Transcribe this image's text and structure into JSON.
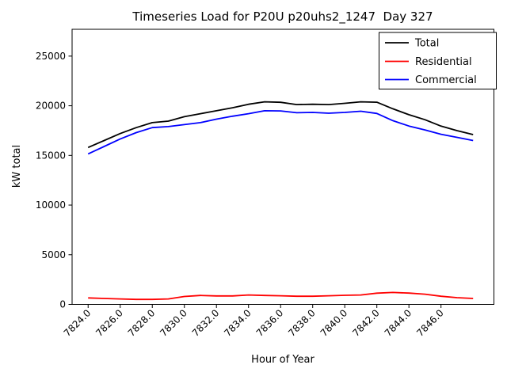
{
  "chart_data": {
    "type": "line",
    "title": "Timeseries Load for P20U p20uhs2_1247  Day 327",
    "xlabel": "Hour of Year",
    "ylabel": "kW total",
    "x": [
      7824.0,
      7825.0,
      7826.0,
      7827.0,
      7828.0,
      7829.0,
      7830.0,
      7831.0,
      7832.0,
      7833.0,
      7834.0,
      7835.0,
      7836.0,
      7837.0,
      7838.0,
      7839.0,
      7840.0,
      7841.0,
      7842.0,
      7843.0,
      7844.0,
      7845.0,
      7846.0,
      7847.0,
      7848.0
    ],
    "series": [
      {
        "name": "Total",
        "color": "#000000",
        "values": [
          15800,
          16500,
          17200,
          17800,
          18300,
          18450,
          18900,
          19200,
          19500,
          19800,
          20150,
          20400,
          20350,
          20120,
          20150,
          20120,
          20250,
          20400,
          20360,
          19700,
          19100,
          18600,
          17950,
          17500,
          17100
        ]
      },
      {
        "name": "Residential",
        "color": "#ff0000",
        "values": [
          650,
          600,
          550,
          500,
          500,
          550,
          800,
          900,
          850,
          850,
          950,
          900,
          870,
          820,
          820,
          870,
          920,
          950,
          1130,
          1200,
          1140,
          1030,
          820,
          680,
          600
        ]
      },
      {
        "name": "Commercial",
        "color": "#0000ff",
        "values": [
          15150,
          15900,
          16650,
          17300,
          17800,
          17900,
          18100,
          18300,
          18650,
          18950,
          19200,
          19500,
          19480,
          19300,
          19330,
          19250,
          19330,
          19450,
          19230,
          18500,
          17960,
          17570,
          17130,
          16820,
          16500
        ]
      }
    ],
    "xlim": [
      7823.0,
      7849.3
    ],
    "ylim": [
      0,
      27700
    ],
    "xticks": [
      7824,
      7826,
      7828,
      7830,
      7832,
      7834,
      7836,
      7838,
      7840,
      7842,
      7844,
      7846
    ],
    "xtick_labels": [
      "7824.0",
      "7826.0",
      "7828.0",
      "7830.0",
      "7832.0",
      "7834.0",
      "7836.0",
      "7838.0",
      "7840.0",
      "7842.0",
      "7844.0",
      "7846.0"
    ],
    "yticks": [
      0,
      5000,
      10000,
      15000,
      20000,
      25000
    ],
    "ytick_labels": [
      "0",
      "5000",
      "10000",
      "15000",
      "20000",
      "25000"
    ],
    "legend_position": "upper right",
    "grid": false,
    "axes_color": "#000000",
    "background_color": "#ffffff"
  }
}
